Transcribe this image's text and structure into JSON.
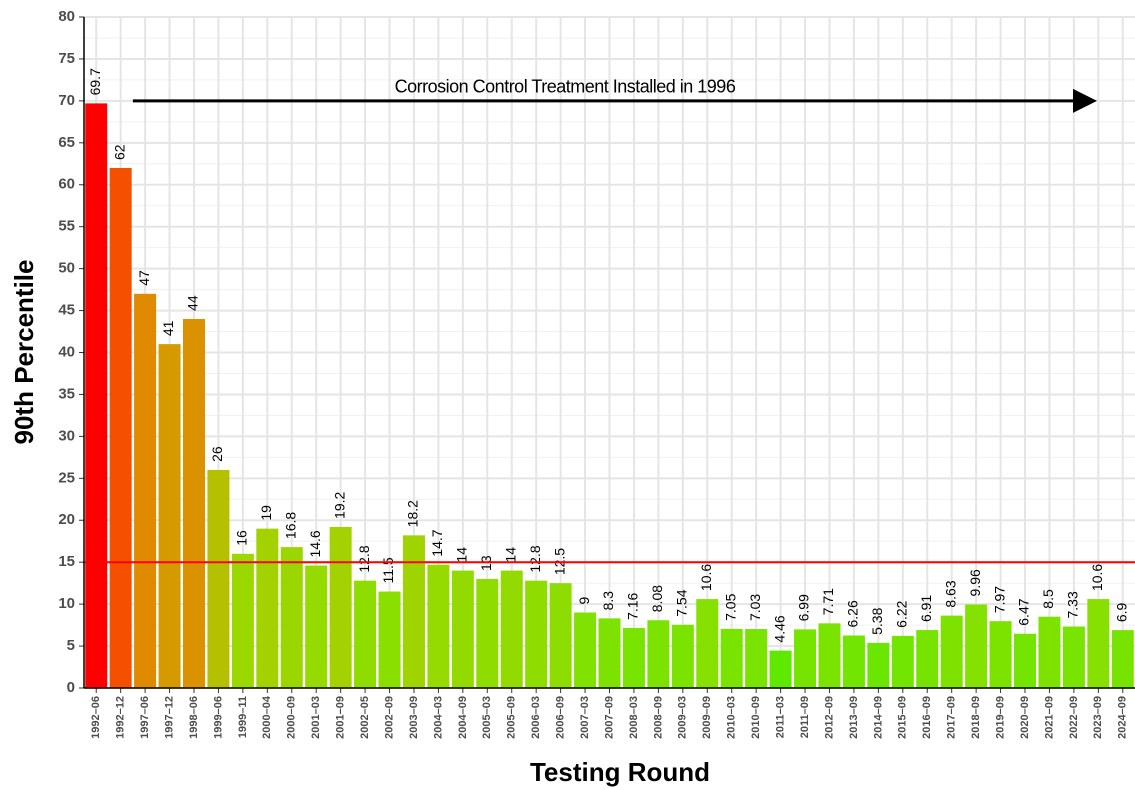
{
  "chart_data": {
    "type": "bar",
    "x_label": "Testing Round",
    "y_label": "90th Percentile",
    "annotation": "Corrosion Control Treatment Installed in 1996",
    "arrow_y": 70,
    "hline": 15,
    "hline_color": "#ff0000",
    "categories": [
      "1992–06",
      "1992–12",
      "1997–06",
      "1997–12",
      "1998–06",
      "1999–06",
      "1999–11",
      "2000–04",
      "2000–09",
      "2001–03",
      "2001–09",
      "2002–05",
      "2002–09",
      "2003–09",
      "2004–03",
      "2004–09",
      "2005–03",
      "2005–09",
      "2006–03",
      "2006–09",
      "2007–03",
      "2007–09",
      "2008–03",
      "2008–09",
      "2009–03",
      "2009–09",
      "2010–03",
      "2010–09",
      "2011–03",
      "2011–09",
      "2012–09",
      "2013–09",
      "2014–09",
      "2015–09",
      "2016–09",
      "2017–09",
      "2018–09",
      "2019–09",
      "2020–09",
      "2021–09",
      "2022–09",
      "2023–09",
      "2024–09"
    ],
    "values": [
      69.7,
      62,
      47,
      41,
      44,
      26,
      16,
      19,
      16.8,
      14.6,
      19.2,
      12.8,
      11.5,
      18.2,
      14.7,
      14,
      13,
      14,
      12.8,
      12.5,
      9,
      8.3,
      7.16,
      8.08,
      7.54,
      10.6,
      7.05,
      7.03,
      4.46,
      6.99,
      7.71,
      6.26,
      5.38,
      6.22,
      6.91,
      8.63,
      9.96,
      7.97,
      6.47,
      8.5,
      7.33,
      10.6,
      6.9
    ],
    "colors": [
      "#ff0000",
      "#f55000",
      "#e08a00",
      "#d49a00",
      "#da9200",
      "#b5c000",
      "#9ad800",
      "#a3d200",
      "#9cd600",
      "#95da00",
      "#a4d200",
      "#8edc00",
      "#8ade00",
      "#a0d400",
      "#95da00",
      "#93da00",
      "#8fdc00",
      "#93da00",
      "#8edc00",
      "#8ddd00",
      "#80e200",
      "#7de200",
      "#78e400",
      "#7ce300",
      "#7ae400",
      "#86e000",
      "#78e400",
      "#78e400",
      "#5fe800",
      "#77e400",
      "#7ae400",
      "#72e500",
      "#6ae600",
      "#72e500",
      "#76e400",
      "#7ee200",
      "#84e100",
      "#7ce300",
      "#74e500",
      "#7ee200",
      "#79e400",
      "#86e000",
      "#76e400"
    ],
    "ylim": [
      0,
      80
    ],
    "yticks": [
      0,
      5,
      10,
      15,
      20,
      25,
      30,
      35,
      40,
      45,
      50,
      55,
      60,
      65,
      70,
      75,
      80
    ],
    "grid": true
  }
}
